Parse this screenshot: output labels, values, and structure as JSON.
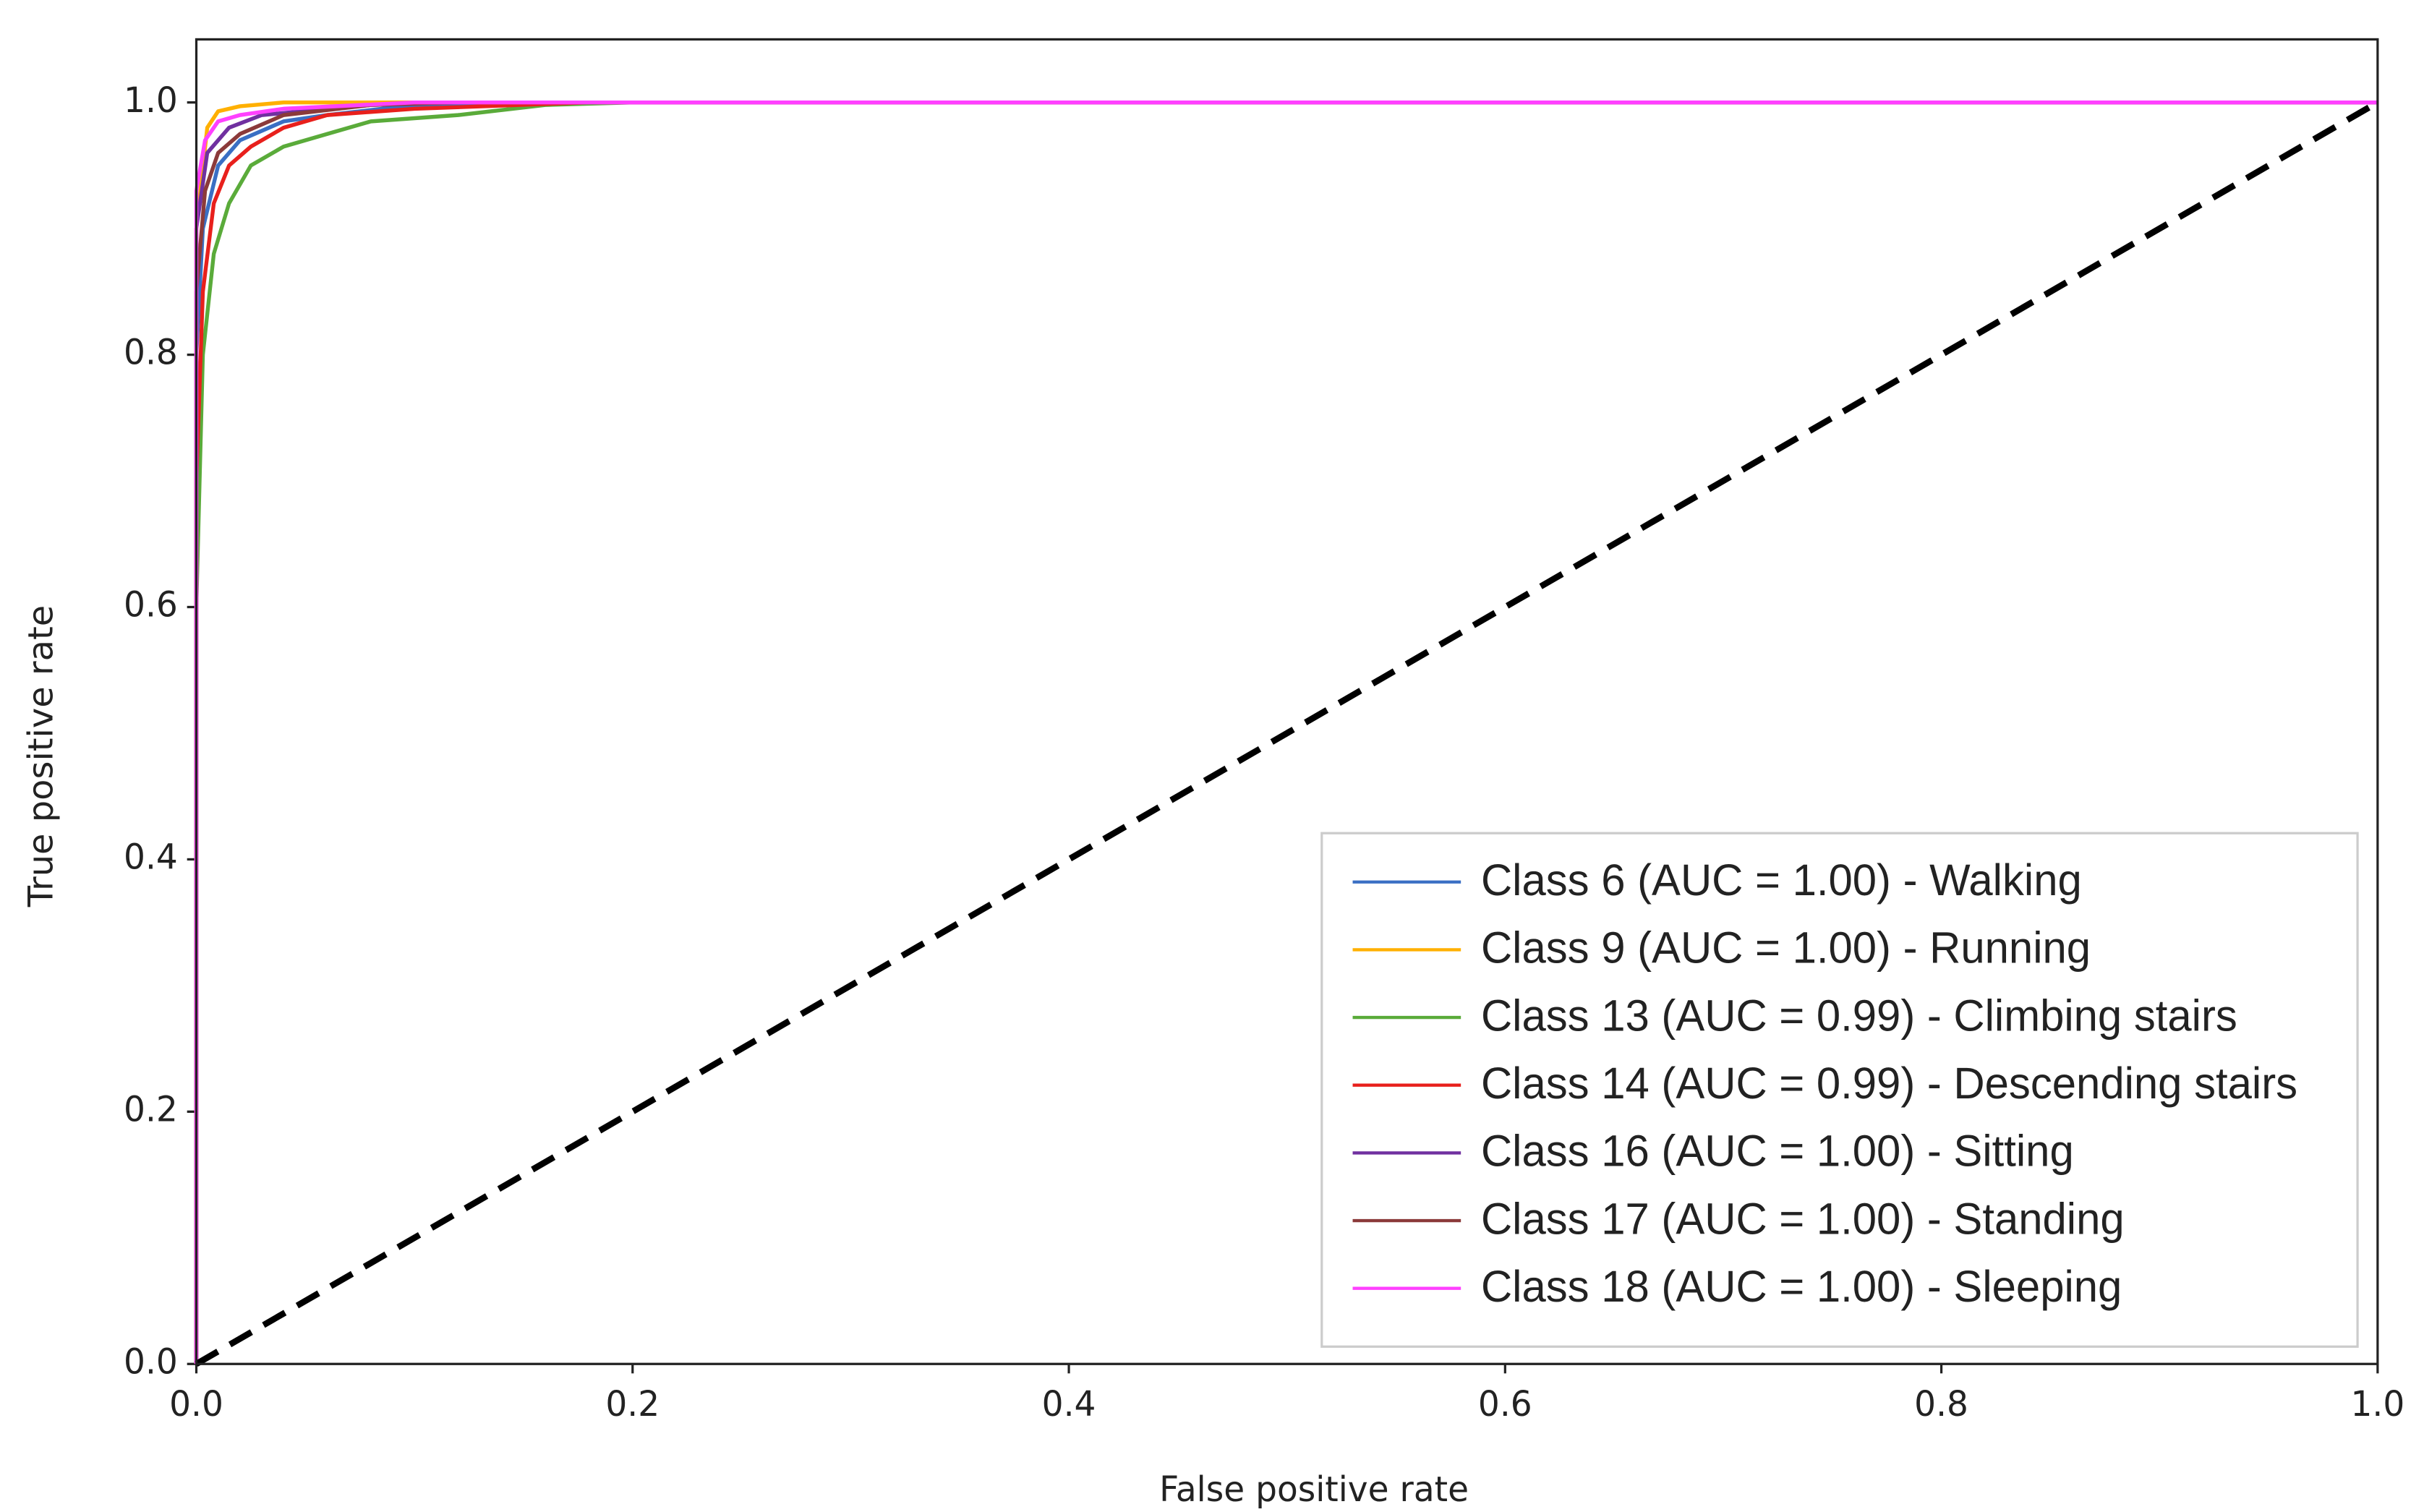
{
  "chart_data": {
    "type": "line",
    "xlabel": "False positive rate",
    "ylabel": "True positive rate",
    "xlim": [
      0,
      1
    ],
    "ylim": [
      0,
      1.05
    ],
    "xticks": [
      {
        "value": 0,
        "label": "0.0"
      },
      0.2,
      0.4,
      0.6,
      0.8,
      {
        "value": 1,
        "label": "1.0"
      }
    ],
    "yticks": [
      {
        "value": 0,
        "label": "0.0"
      },
      0.2,
      0.4,
      0.6,
      0.8,
      {
        "value": 1,
        "label": "1.0"
      }
    ],
    "legend": "lower right",
    "diagonal": {
      "x": [
        0,
        1
      ],
      "values": [
        0,
        1
      ],
      "color": "#000000",
      "dashed": true
    },
    "series": [
      {
        "name": "Class 6 (AUC = 1.00) - Walking",
        "color": "#3a6fc4",
        "x": [
          0,
          0,
          0.003,
          0.01,
          0.02,
          0.04,
          0.06,
          0.1,
          0.15,
          1
        ],
        "values": [
          0,
          0.8,
          0.9,
          0.95,
          0.97,
          0.985,
          0.99,
          0.998,
          1,
          1
        ]
      },
      {
        "name": "Class 9 (AUC = 1.00) - Running",
        "color": "#ffb000",
        "x": [
          0,
          0,
          0.005,
          0.01,
          0.02,
          0.04,
          1
        ],
        "values": [
          0,
          0.9,
          0.98,
          0.993,
          0.997,
          1,
          1
        ]
      },
      {
        "name": "Class 13 (AUC = 0.99) - Climbing stairs",
        "color": "#5aab3a",
        "x": [
          0,
          0,
          0.003,
          0.008,
          0.015,
          0.025,
          0.04,
          0.06,
          0.08,
          0.12,
          0.16,
          0.2,
          1
        ],
        "values": [
          0,
          0.6,
          0.8,
          0.88,
          0.92,
          0.95,
          0.965,
          0.975,
          0.985,
          0.99,
          0.998,
          1,
          1
        ]
      },
      {
        "name": "Class 14 (AUC = 0.99) - Descending stairs",
        "color": "#e8201c",
        "x": [
          0,
          0,
          0.003,
          0.008,
          0.015,
          0.025,
          0.04,
          0.06,
          0.1,
          0.18,
          1
        ],
        "values": [
          0,
          0.7,
          0.85,
          0.92,
          0.95,
          0.965,
          0.98,
          0.99,
          0.995,
          1,
          1
        ]
      },
      {
        "name": "Class 16 (AUC = 1.00) - Sitting",
        "color": "#7030a0",
        "x": [
          0,
          0,
          0.005,
          0.015,
          0.03,
          0.08,
          0.12,
          1
        ],
        "values": [
          0,
          0.9,
          0.96,
          0.98,
          0.99,
          0.998,
          1,
          1
        ]
      },
      {
        "name": "Class 17 (AUC = 1.00) - Standing",
        "color": "#8b3a3a",
        "x": [
          0,
          0,
          0.004,
          0.01,
          0.02,
          0.04,
          0.08,
          0.12,
          1
        ],
        "values": [
          0,
          0.85,
          0.93,
          0.96,
          0.975,
          0.99,
          0.998,
          1,
          1
        ]
      },
      {
        "name": "Class 18 (AUC = 1.00) - Sleeping",
        "color": "#ff40ff",
        "x": [
          0,
          0,
          0.004,
          0.01,
          0.02,
          0.04,
          0.1,
          1
        ],
        "values": [
          0,
          0.93,
          0.97,
          0.985,
          0.99,
          0.995,
          1,
          1
        ]
      }
    ]
  }
}
